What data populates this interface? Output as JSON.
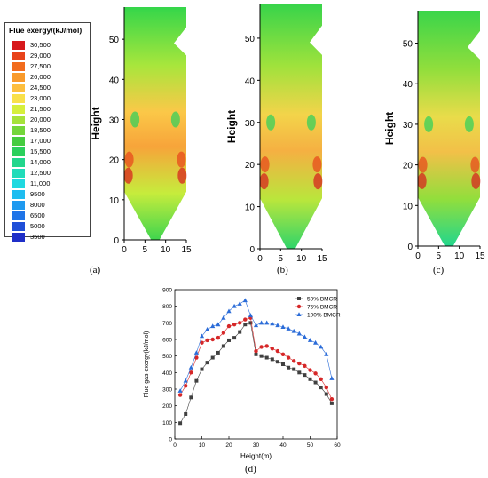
{
  "legend": {
    "title": "Flue exergy/(kJ/mol)",
    "entries": [
      {
        "label": "30,500",
        "color": "#d7191c"
      },
      {
        "label": "29,000",
        "color": "#e8431a"
      },
      {
        "label": "27,500",
        "color": "#f26c1e"
      },
      {
        "label": "26,000",
        "color": "#f99a2b"
      },
      {
        "label": "24,500",
        "color": "#fdbe3e"
      },
      {
        "label": "23,000",
        "color": "#f9e04a"
      },
      {
        "label": "21,500",
        "color": "#d6ef3c"
      },
      {
        "label": "20,000",
        "color": "#a6e23a"
      },
      {
        "label": "18,500",
        "color": "#74d63a"
      },
      {
        "label": "17,000",
        "color": "#45cc3f"
      },
      {
        "label": "15,500",
        "color": "#2bd05c"
      },
      {
        "label": "14,000",
        "color": "#22d68c"
      },
      {
        "label": "12,500",
        "color": "#20dcb9"
      },
      {
        "label": "11,000",
        "color": "#1fd9e0"
      },
      {
        "label": "9500",
        "color": "#1fbdf0"
      },
      {
        "label": "8000",
        "color": "#1f9af0"
      },
      {
        "label": "6500",
        "color": "#1f74e8"
      },
      {
        "label": "5000",
        "color": "#1f4fd8"
      },
      {
        "label": "3500",
        "color": "#1f2fc8"
      }
    ]
  },
  "contour_panels": [
    {
      "id": "a",
      "label": "(a)",
      "ylabel": "Height",
      "yticks": [
        "0",
        "10",
        "20",
        "30",
        "40",
        "50"
      ],
      "xticks": [
        "0",
        "5",
        "10",
        "15"
      ]
    },
    {
      "id": "b",
      "label": "(b)",
      "ylabel": "Height",
      "yticks": [
        "0",
        "10",
        "20",
        "30",
        "40",
        "50"
      ],
      "xticks": [
        "0",
        "5",
        "10",
        "15"
      ]
    },
    {
      "id": "c",
      "label": "(c)",
      "ylabel": "Height",
      "yticks": [
        "0",
        "10",
        "20",
        "30",
        "40",
        "50"
      ],
      "xticks": [
        "0",
        "5",
        "10",
        "15"
      ]
    }
  ],
  "chart_data": {
    "type": "line",
    "label": "(d)",
    "xlabel": "Height(m)",
    "ylabel": "Flue gas exergy(kJ/mol)",
    "xlim": [
      0,
      60
    ],
    "ylim": [
      0,
      900
    ],
    "xticks": [
      0,
      10,
      20,
      30,
      40,
      50,
      60
    ],
    "yticks": [
      0,
      100,
      200,
      300,
      400,
      500,
      600,
      700,
      800,
      900
    ],
    "grid": false,
    "legend_position": "top-right",
    "series": [
      {
        "name": "50% BMCR",
        "color": "#404040",
        "marker": "square",
        "x": [
          2,
          4,
          6,
          8,
          10,
          12,
          14,
          16,
          18,
          20,
          22,
          24,
          26,
          28,
          30,
          32,
          34,
          36,
          38,
          40,
          42,
          44,
          46,
          48,
          50,
          52,
          54,
          56,
          58
        ],
        "y": [
          95,
          150,
          250,
          350,
          420,
          460,
          490,
          520,
          560,
          595,
          610,
          645,
          690,
          700,
          510,
          500,
          490,
          480,
          465,
          450,
          430,
          420,
          400,
          385,
          360,
          340,
          310,
          270,
          215
        ]
      },
      {
        "name": "75% BMCR",
        "color": "#d62728",
        "marker": "circle",
        "x": [
          2,
          4,
          6,
          8,
          10,
          12,
          14,
          16,
          18,
          20,
          22,
          24,
          26,
          28,
          30,
          32,
          34,
          36,
          38,
          40,
          42,
          44,
          46,
          48,
          50,
          52,
          54,
          56,
          58
        ],
        "y": [
          265,
          320,
          400,
          490,
          580,
          595,
          600,
          610,
          640,
          680,
          690,
          700,
          720,
          730,
          530,
          555,
          560,
          545,
          530,
          510,
          490,
          470,
          455,
          440,
          415,
          395,
          360,
          310,
          240
        ]
      },
      {
        "name": "100% BMCR",
        "color": "#2b6cd8",
        "marker": "triangle",
        "x": [
          2,
          4,
          6,
          8,
          10,
          12,
          14,
          16,
          18,
          20,
          22,
          24,
          26,
          28,
          30,
          32,
          34,
          36,
          38,
          40,
          42,
          44,
          46,
          48,
          50,
          52,
          54,
          56,
          58
        ],
        "y": [
          290,
          350,
          430,
          520,
          620,
          660,
          680,
          690,
          730,
          770,
          800,
          815,
          835,
          745,
          685,
          700,
          700,
          695,
          685,
          675,
          665,
          650,
          635,
          615,
          595,
          580,
          555,
          510,
          365
        ]
      }
    ]
  }
}
